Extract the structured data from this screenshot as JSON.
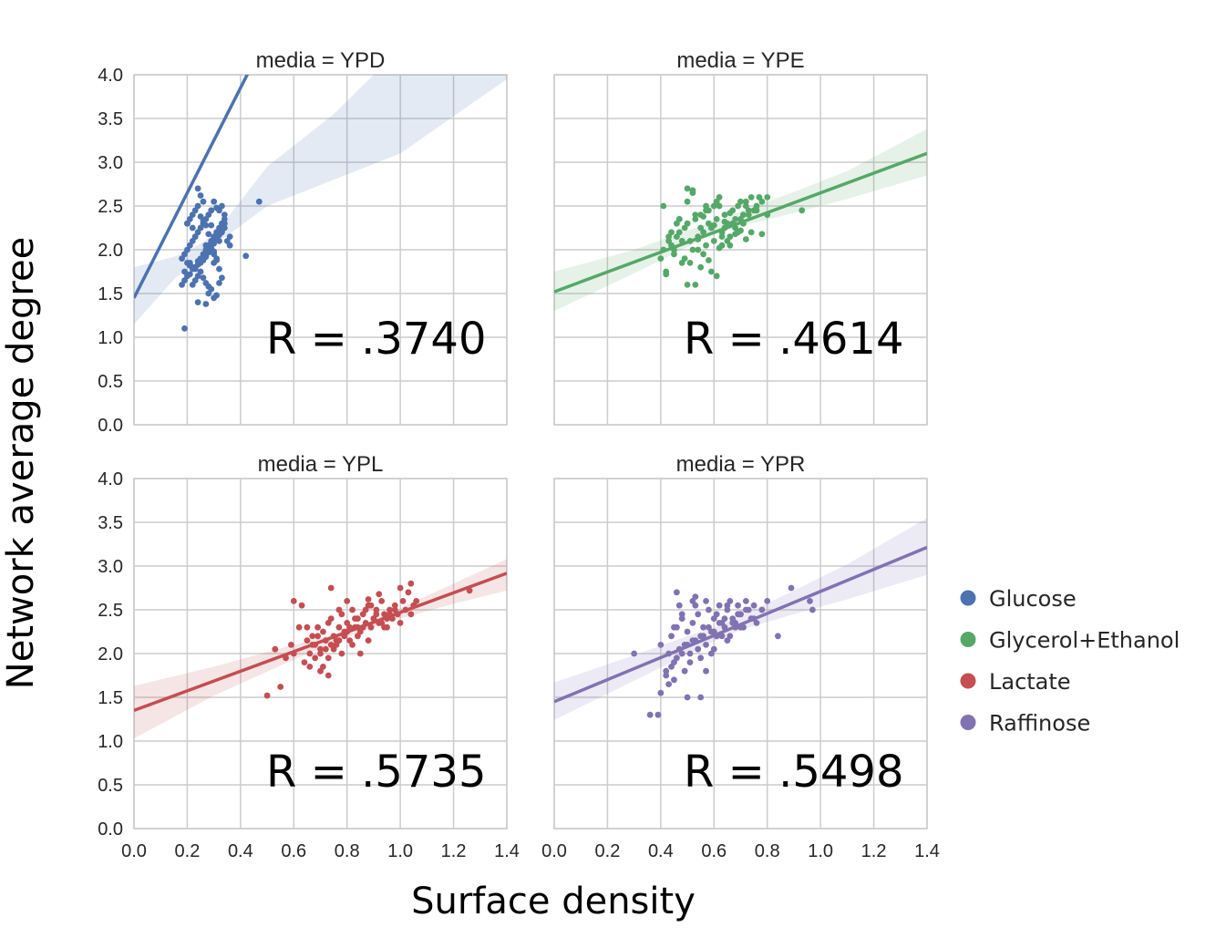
{
  "chart_data": {
    "type": "scatter",
    "xlabel": "Surface density",
    "ylabel": "Network average degree",
    "xlim": [
      0.0,
      1.4
    ],
    "ylim": [
      0.0,
      4.0
    ],
    "x_ticks": [
      "0.0",
      "0.2",
      "0.4",
      "0.6",
      "0.8",
      "1.0",
      "1.2",
      "1.4"
    ],
    "y_ticks": [
      "0.0",
      "0.5",
      "1.0",
      "1.5",
      "2.0",
      "2.5",
      "3.0",
      "3.5",
      "4.0"
    ],
    "grid": true,
    "legend_placement": "right",
    "legend": [
      {
        "label": "Glucose",
        "color": "#4c72b0"
      },
      {
        "label": "Glycerol+Ethanol",
        "color": "#55a868"
      },
      {
        "label": "Lactate",
        "color": "#c44e52"
      },
      {
        "label": "Raffinose",
        "color": "#8172b2"
      }
    ],
    "panels": [
      {
        "title": "media = YPD",
        "annotation": "R = .3740",
        "color": "#4c72b0",
        "fit": {
          "intercept": 1.45,
          "slope": 6.0
        },
        "ci_x": [
          0.0,
          0.15,
          0.2,
          0.25,
          0.3,
          0.35,
          0.5,
          0.75,
          1.0,
          1.4
        ],
        "ci_lower": [
          1.15,
          1.66,
          1.79,
          1.95,
          2.07,
          2.16,
          2.5,
          2.8,
          3.1,
          3.95
        ],
        "ci_upper": [
          1.8,
          1.92,
          1.98,
          2.07,
          2.18,
          2.36,
          2.95,
          3.55,
          4.3,
          5.8
        ],
        "points": {
          "x": [
            0.18,
            0.2,
            0.21,
            0.22,
            0.23,
            0.24,
            0.25,
            0.26,
            0.27,
            0.28,
            0.29,
            0.3,
            0.31,
            0.32,
            0.33,
            0.34,
            0.35,
            0.36,
            0.2,
            0.21,
            0.22,
            0.23,
            0.24,
            0.25,
            0.26,
            0.27,
            0.28,
            0.29,
            0.3,
            0.31,
            0.32,
            0.33,
            0.34,
            0.19,
            0.2,
            0.21,
            0.22,
            0.23,
            0.24,
            0.25,
            0.26,
            0.27,
            0.28,
            0.29,
            0.3,
            0.31,
            0.32,
            0.33,
            0.2,
            0.21,
            0.22,
            0.23,
            0.24,
            0.25,
            0.26,
            0.27,
            0.28,
            0.29,
            0.3,
            0.31,
            0.32,
            0.33,
            0.22,
            0.23,
            0.24,
            0.25,
            0.26,
            0.27,
            0.28,
            0.29,
            0.3,
            0.31,
            0.32,
            0.33,
            0.34,
            0.18,
            0.19,
            0.2,
            0.24,
            0.26,
            0.28,
            0.3,
            0.32,
            0.24,
            0.27,
            0.31,
            0.34,
            0.22,
            0.25,
            0.29,
            0.3,
            0.19,
            0.21,
            0.23,
            0.36,
            0.42,
            0.47,
            0.27,
            0.29,
            0.31
          ],
          "y": [
            1.9,
            1.85,
            1.82,
            1.8,
            1.78,
            1.87,
            1.9,
            1.95,
            2.0,
            2.05,
            2.1,
            2.15,
            2.2,
            2.25,
            2.3,
            2.35,
            2.1,
            2.15,
            2.0,
            2.05,
            2.1,
            2.15,
            2.2,
            2.25,
            2.3,
            2.35,
            2.4,
            2.0,
            1.95,
            1.9,
            2.1,
            2.2,
            2.3,
            1.75,
            1.7,
            1.72,
            1.78,
            1.8,
            1.83,
            1.85,
            1.88,
            1.92,
            1.97,
            2.02,
            2.07,
            2.12,
            2.17,
            2.22,
            2.3,
            2.35,
            2.4,
            2.45,
            2.5,
            2.38,
            2.33,
            2.28,
            2.18,
            2.08,
            1.98,
            1.88,
            1.78,
            1.68,
            1.6,
            1.65,
            1.7,
            1.75,
            1.68,
            1.62,
            1.58,
            1.55,
            1.85,
            2.18,
            2.45,
            2.5,
            2.4,
            1.6,
            1.65,
            2.3,
            2.7,
            2.55,
            1.5,
            1.45,
            1.62,
            1.4,
            1.38,
            1.48,
            2.25,
            2.25,
            2.62,
            2.45,
            2.55,
            1.95,
            1.85,
            2.15,
            2.05,
            1.93,
            2.55,
            2.05,
            2.28,
            2.48
          ]
        },
        "extra_points": {
          "x": [
            0.19
          ],
          "y": [
            1.1
          ]
        }
      },
      {
        "title": "media = YPE",
        "annotation": "R = .4614",
        "color": "#55a868",
        "fit": {
          "intercept": 1.52,
          "slope": 1.13
        },
        "ci_x": [
          0.0,
          0.3,
          0.5,
          0.6,
          0.7,
          0.9,
          1.1,
          1.4
        ],
        "ci_lower": [
          1.3,
          1.73,
          2.03,
          2.17,
          2.27,
          2.42,
          2.58,
          2.85
        ],
        "ci_upper": [
          1.75,
          2.0,
          2.22,
          2.32,
          2.44,
          2.66,
          2.9,
          3.38
        ],
        "points": {
          "x": [
            0.4,
            0.41,
            0.42,
            0.43,
            0.44,
            0.45,
            0.46,
            0.47,
            0.48,
            0.49,
            0.5,
            0.51,
            0.52,
            0.53,
            0.54,
            0.55,
            0.56,
            0.57,
            0.58,
            0.59,
            0.6,
            0.61,
            0.62,
            0.63,
            0.64,
            0.65,
            0.66,
            0.67,
            0.68,
            0.69,
            0.7,
            0.71,
            0.72,
            0.73,
            0.74,
            0.75,
            0.76,
            0.77,
            0.78,
            0.8,
            0.42,
            0.44,
            0.46,
            0.48,
            0.5,
            0.52,
            0.54,
            0.56,
            0.58,
            0.6,
            0.62,
            0.64,
            0.66,
            0.68,
            0.7,
            0.72,
            0.74,
            0.76,
            0.43,
            0.45,
            0.47,
            0.49,
            0.51,
            0.53,
            0.55,
            0.57,
            0.59,
            0.61,
            0.63,
            0.65,
            0.67,
            0.69,
            0.71,
            0.73,
            0.5,
            0.52,
            0.54,
            0.56,
            0.58,
            0.6,
            0.62,
            0.64,
            0.66,
            0.68,
            0.7,
            0.72,
            0.78,
            0.8,
            0.93,
            0.5,
            0.53,
            0.41,
            0.55,
            0.57,
            0.47,
            0.61,
            0.63
          ],
          "y": [
            1.9,
            2.0,
            1.75,
            2.1,
            2.05,
            1.95,
            2.15,
            2.2,
            1.85,
            2.25,
            2.3,
            2.1,
            2.0,
            2.35,
            2.15,
            2.4,
            2.2,
            2.05,
            2.3,
            2.25,
            2.1,
            2.35,
            2.5,
            2.2,
            2.4,
            2.3,
            2.15,
            2.45,
            2.25,
            2.5,
            2.35,
            2.3,
            2.55,
            2.4,
            2.2,
            2.45,
            2.5,
            2.6,
            2.55,
            2.4,
            1.72,
            2.2,
            2.3,
            2.1,
            2.55,
            2.65,
            2.0,
            1.95,
            2.45,
            2.5,
            2.6,
            2.25,
            2.05,
            2.35,
            2.55,
            2.5,
            2.6,
            2.45,
            2.15,
            2.0,
            2.35,
            1.9,
            1.85,
            2.4,
            1.8,
            2.5,
            1.75,
            2.55,
            2.05,
            2.1,
            2.3,
            2.2,
            2.4,
            2.45,
            2.7,
            2.68,
            2.12,
            2.38,
            1.88,
            2.28,
            2.02,
            2.32,
            2.42,
            2.18,
            2.22,
            2.12,
            2.18,
            2.6,
            2.45,
            1.6,
            1.6,
            2.5,
            2.25,
            2.45,
            2.35,
            1.7,
            2.15
          ],
          "note": ""
        }
      },
      {
        "title": "media = YPL",
        "annotation": "R = .5735",
        "color": "#c44e52",
        "fit": {
          "intercept": 1.35,
          "slope": 1.12
        },
        "ci_x": [
          0.0,
          0.3,
          0.6,
          0.75,
          0.85,
          1.0,
          1.2,
          1.4
        ],
        "ci_lower": [
          1.03,
          1.52,
          1.93,
          2.12,
          2.25,
          2.4,
          2.57,
          2.72
        ],
        "ci_upper": [
          1.63,
          1.85,
          2.1,
          2.22,
          2.32,
          2.52,
          2.8,
          3.08
        ],
        "points": {
          "x": [
            0.5,
            0.53,
            0.55,
            0.57,
            0.59,
            0.6,
            0.62,
            0.64,
            0.65,
            0.66,
            0.67,
            0.68,
            0.69,
            0.7,
            0.71,
            0.72,
            0.73,
            0.74,
            0.75,
            0.76,
            0.77,
            0.78,
            0.79,
            0.8,
            0.81,
            0.82,
            0.83,
            0.84,
            0.85,
            0.86,
            0.87,
            0.88,
            0.89,
            0.9,
            0.91,
            0.92,
            0.93,
            0.94,
            0.95,
            0.96,
            0.97,
            0.98,
            0.99,
            1.0,
            1.01,
            1.02,
            1.03,
            1.04,
            1.05,
            1.06,
            0.66,
            0.68,
            0.7,
            0.72,
            0.74,
            0.76,
            0.78,
            0.8,
            0.82,
            0.84,
            0.86,
            0.88,
            0.9,
            0.92,
            0.94,
            0.96,
            0.98,
            0.67,
            0.69,
            0.71,
            0.73,
            0.75,
            0.77,
            0.79,
            0.81,
            0.83,
            0.85,
            0.87,
            0.89,
            0.91,
            0.93,
            0.95,
            0.63,
            0.65,
            0.7,
            0.73,
            0.77,
            0.8,
            0.84,
            0.88,
            0.92,
            0.96,
            1.0,
            1.04,
            1.26,
            0.6,
            0.74
          ],
          "y": [
            1.52,
            2.05,
            1.62,
            1.95,
            2.1,
            2.6,
            2.3,
            1.9,
            2.15,
            2.0,
            2.2,
            2.1,
            2.3,
            2.05,
            2.25,
            2.15,
            2.35,
            2.4,
            2.2,
            2.1,
            2.3,
            2.45,
            2.2,
            2.35,
            2.15,
            2.5,
            2.3,
            2.4,
            2.25,
            2.45,
            2.35,
            2.55,
            2.3,
            2.4,
            2.5,
            2.35,
            2.6,
            2.45,
            2.3,
            2.5,
            2.4,
            2.55,
            2.45,
            2.35,
            2.6,
            2.5,
            2.7,
            2.45,
            2.55,
            2.6,
            1.85,
            1.95,
            2.0,
            2.05,
            2.1,
            2.15,
            2.0,
            2.25,
            2.1,
            2.2,
            2.3,
            2.15,
            2.4,
            2.35,
            2.3,
            2.45,
            2.5,
            2.1,
            2.2,
            1.85,
            1.95,
            2.05,
            2.15,
            2.25,
            2.3,
            2.4,
            2.0,
            2.5,
            2.55,
            2.45,
            2.35,
            2.4,
            2.55,
            2.3,
            1.8,
            1.75,
            2.5,
            2.6,
            2.3,
            2.62,
            2.68,
            2.45,
            2.75,
            2.8,
            2.72,
            2.0,
            2.75
          ],
          "note": ""
        }
      },
      {
        "title": "media = YPR",
        "annotation": "R = .5498",
        "color": "#8172b2",
        "fit": {
          "intercept": 1.45,
          "slope": 1.26
        },
        "ci_x": [
          0.0,
          0.3,
          0.5,
          0.6,
          0.7,
          0.9,
          1.1,
          1.4
        ],
        "ci_lower": [
          1.24,
          1.69,
          1.99,
          2.14,
          2.27,
          2.45,
          2.62,
          2.9
        ],
        "ci_upper": [
          1.67,
          1.98,
          2.2,
          2.3,
          2.43,
          2.72,
          3.02,
          3.55
        ],
        "points": {
          "x": [
            0.3,
            0.36,
            0.39,
            0.4,
            0.42,
            0.43,
            0.44,
            0.45,
            0.46,
            0.47,
            0.48,
            0.49,
            0.5,
            0.51,
            0.52,
            0.53,
            0.54,
            0.55,
            0.56,
            0.57,
            0.58,
            0.59,
            0.6,
            0.61,
            0.62,
            0.63,
            0.64,
            0.65,
            0.66,
            0.67,
            0.68,
            0.69,
            0.7,
            0.71,
            0.72,
            0.73,
            0.74,
            0.75,
            0.76,
            0.78,
            0.8,
            0.42,
            0.44,
            0.46,
            0.48,
            0.5,
            0.52,
            0.54,
            0.56,
            0.58,
            0.6,
            0.62,
            0.64,
            0.66,
            0.68,
            0.7,
            0.72,
            0.74,
            0.43,
            0.45,
            0.47,
            0.49,
            0.51,
            0.53,
            0.55,
            0.57,
            0.59,
            0.61,
            0.63,
            0.65,
            0.67,
            0.69,
            0.71,
            0.46,
            0.5,
            0.55,
            0.6,
            0.65,
            0.7,
            0.75,
            0.84,
            0.89,
            0.96,
            0.97,
            0.48,
            0.52,
            0.4,
            0.45,
            0.53,
            0.57
          ],
          "y": [
            2.0,
            1.3,
            1.3,
            2.1,
            1.8,
            2.0,
            2.2,
            1.9,
            2.3,
            2.05,
            2.4,
            2.1,
            2.25,
            2.0,
            2.35,
            2.15,
            2.45,
            2.2,
            2.3,
            2.1,
            2.5,
            2.25,
            2.4,
            2.2,
            2.55,
            2.35,
            2.3,
            2.5,
            2.6,
            2.4,
            2.35,
            2.55,
            2.45,
            2.3,
            2.6,
            2.5,
            2.4,
            2.55,
            2.35,
            2.5,
            2.6,
            1.75,
            1.85,
            1.95,
            2.0,
            2.1,
            2.15,
            2.05,
            2.2,
            2.3,
            2.25,
            2.35,
            2.4,
            2.2,
            2.3,
            2.45,
            2.5,
            2.4,
            1.65,
            1.7,
            2.55,
            1.8,
            1.9,
            2.65,
            1.95,
            2.6,
            2.0,
            2.45,
            2.2,
            2.55,
            2.35,
            2.45,
            2.3,
            2.7,
            1.5,
            1.5,
            2.05,
            2.15,
            2.3,
            2.4,
            2.2,
            2.75,
            2.6,
            2.5,
            2.45,
            2.6,
            1.55,
            2.3,
            2.55,
            1.8
          ],
          "note": ""
        }
      }
    ]
  }
}
